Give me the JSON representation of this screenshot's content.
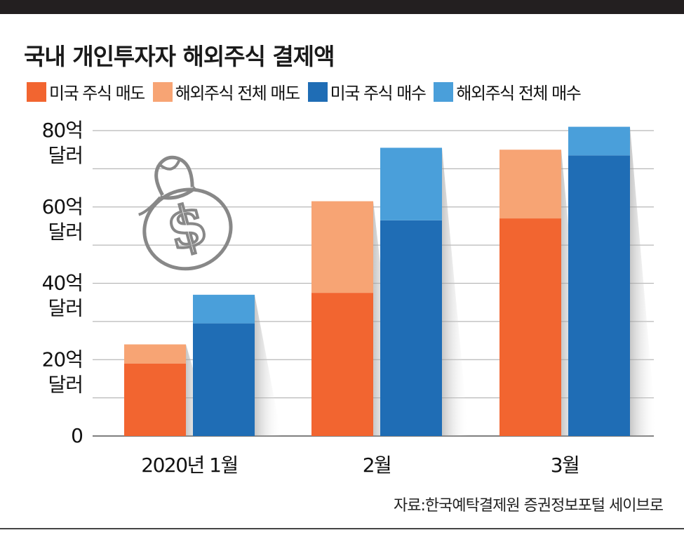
{
  "title": "국내 개인투자자 해외주식 결제액",
  "legend": [
    {
      "label": "미국 주식 매도",
      "color": "#f26530"
    },
    {
      "label": "해외주식 전체 매도",
      "color": "#f7a474"
    },
    {
      "label": "미국 주식 매수",
      "color": "#1f6db5"
    },
    {
      "label": "해외주식 전체 매수",
      "color": "#4a9fda"
    }
  ],
  "source": "자료:한국예탁결제원 증권정보포털 세이브로",
  "chart_data": {
    "type": "bar",
    "stacked": true,
    "categories": [
      "2020년 1월",
      "2월",
      "3월"
    ],
    "series": [
      {
        "name": "미국 주식 매도",
        "stack": "sell",
        "color": "#f26530",
        "values": [
          19,
          37.5,
          57
        ]
      },
      {
        "name": "해외주식 전체 매도",
        "stack": "sell",
        "color": "#f7a474",
        "values": [
          5,
          24,
          18
        ]
      },
      {
        "name": "미국 주식 매수",
        "stack": "buy",
        "color": "#1f6db5",
        "values": [
          29.5,
          56.5,
          73.5
        ]
      },
      {
        "name": "해외주식 전체 매수",
        "stack": "buy",
        "color": "#4a9fda",
        "values": [
          7.5,
          19,
          7.5
        ]
      }
    ],
    "ylim": [
      0,
      80
    ],
    "ytick_values": [
      0,
      20,
      40,
      60,
      80
    ],
    "ytick_labels": [
      [
        "0"
      ],
      [
        "20억",
        "달러"
      ],
      [
        "40억",
        "달러"
      ],
      [
        "60억",
        "달러"
      ],
      [
        "80억",
        "달러"
      ]
    ],
    "grid": true,
    "legend_position": "top-left",
    "icon": "money-bag-icon"
  }
}
